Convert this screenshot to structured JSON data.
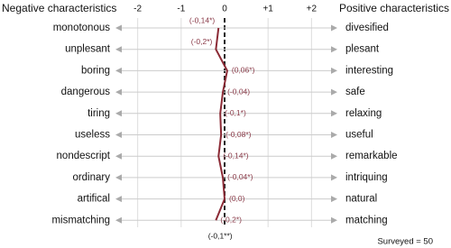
{
  "chart_data": {
    "type": "line",
    "left_title": "Negative characteristics",
    "right_title": "Positive characteristics",
    "categories": [
      "monotonous",
      "unplesant",
      "boring",
      "dangerous",
      "tiring",
      "useless",
      "nondescript",
      "ordinary",
      "artifical",
      "mismatching"
    ],
    "positive_categories": [
      "divesified",
      "plesant",
      "interesting",
      "safe",
      "relaxing",
      "useful",
      "remarkable",
      "intriquing",
      "natural",
      "matching"
    ],
    "series": [
      {
        "color": "#8b2a35",
        "values": [
          -0.14,
          -0.2,
          0.06,
          -0.04,
          -0.1,
          -0.08,
          -0.14,
          -0.04,
          0,
          -0.2
        ],
        "value_labels": [
          "(-0,14*)",
          "(-0,2*)",
          "(0,06*)",
          "(-0,04)",
          "(-0,1*)",
          "(-0,08*)",
          "(-0,14*)",
          "(-0,04*)",
          "(0,0)",
          "(-0,2*)"
        ]
      }
    ],
    "mean": {
      "value": -0.1,
      "label": "(-0,1**)"
    },
    "xlim": [
      -2.2,
      2.2
    ],
    "xticks": [
      -2,
      -1,
      0,
      {
        "value": 1,
        "label": "+1"
      },
      {
        "value": 2,
        "label": "+2"
      }
    ],
    "grid": true,
    "note": "Surveyed = 50"
  }
}
